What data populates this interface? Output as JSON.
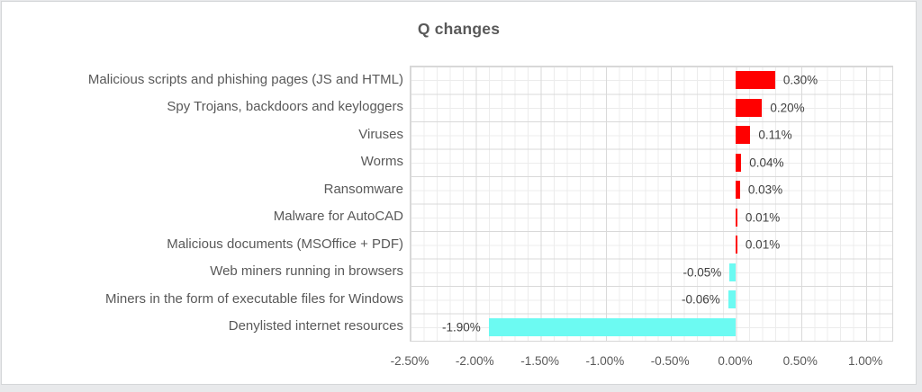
{
  "chart_data": {
    "type": "bar",
    "orientation": "horizontal",
    "title": "Q changes",
    "categories": [
      "Malicious scripts and phishing pages (JS and HTML)",
      "Spy Trojans, backdoors and keyloggers",
      "Viruses",
      "Worms",
      "Ransomware",
      "Malware for AutoCAD",
      "Malicious documents (MSOffice + PDF)",
      "Web miners running in browsers",
      "Miners in the form of executable files for Windows",
      "Denylisted internet resources"
    ],
    "values": [
      0.3,
      0.2,
      0.11,
      0.04,
      0.03,
      0.01,
      0.01,
      -0.05,
      -0.06,
      -1.9
    ],
    "value_labels": [
      "0.30%",
      "0.20%",
      "0.11%",
      "0.04%",
      "0.03%",
      "0.01%",
      "0.01%",
      "-0.05%",
      "-0.06%",
      "-1.90%"
    ],
    "unit": "%",
    "xlabel": "",
    "ylabel": "",
    "xlim": [
      -2.5,
      1.2
    ],
    "x_tick_values": [
      -2.5,
      -2.0,
      -1.5,
      -1.0,
      -0.5,
      0.0,
      0.5,
      1.0
    ],
    "x_tick_labels": [
      "-2.50%",
      "-2.00%",
      "-1.50%",
      "-1.00%",
      "-0.50%",
      "0.00%",
      "0.50%",
      "1.00%"
    ],
    "grid": "vertical minor every 0.10%, major every 0.50%; horizontal row lines",
    "legend": "none",
    "colors": {
      "positive_bar": "#ff0000",
      "negative_bar": "#6cfaf2",
      "title_text": "#595959",
      "category_text": "#595959",
      "value_text": "#3f3f3f",
      "tick_text": "#595959",
      "major_grid": "#d9d9d9",
      "minor_grid": "#ececec",
      "chart_border": "#d4d6d8"
    }
  }
}
